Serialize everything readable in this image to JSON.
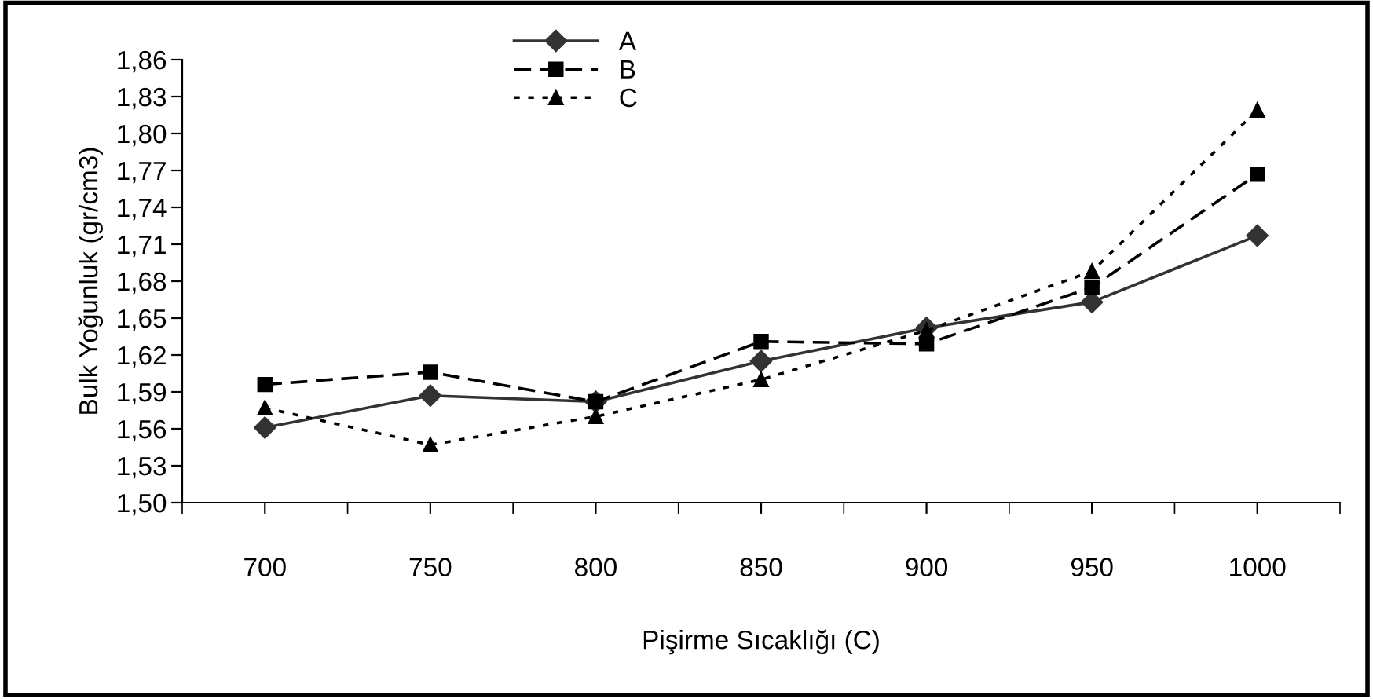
{
  "chart_data": {
    "type": "line",
    "xlabel": "Pişirme Sıcaklığı (C)",
    "ylabel": "Bulk Yoğunluk (gr/cm3)",
    "categories": [
      "700",
      "750",
      "800",
      "850",
      "900",
      "950",
      "1000"
    ],
    "series": [
      {
        "name": "A",
        "color": "#333333",
        "marker": "diamond",
        "line_style": "solid",
        "values": [
          1.561,
          1.587,
          1.582,
          1.615,
          1.642,
          1.663,
          1.717
        ]
      },
      {
        "name": "B",
        "color": "#000000",
        "marker": "square",
        "line_style": "dashed",
        "values": [
          1.596,
          1.606,
          1.582,
          1.631,
          1.629,
          1.675,
          1.767
        ]
      },
      {
        "name": "C",
        "color": "#000000",
        "marker": "triangle",
        "line_style": "dotted",
        "values": [
          1.577,
          1.547,
          1.57,
          1.6,
          1.64,
          1.688,
          1.819
        ]
      }
    ],
    "ylim": [
      1.5,
      1.86
    ],
    "yticks": [
      {
        "value": 1.5,
        "label": "1,50"
      },
      {
        "value": 1.53,
        "label": "1,53"
      },
      {
        "value": 1.56,
        "label": "1,56"
      },
      {
        "value": 1.59,
        "label": "1,59"
      },
      {
        "value": 1.62,
        "label": "1,62"
      },
      {
        "value": 1.65,
        "label": "1,65"
      },
      {
        "value": 1.68,
        "label": "1,68"
      },
      {
        "value": 1.71,
        "label": "1,71"
      },
      {
        "value": 1.74,
        "label": "1,74"
      },
      {
        "value": 1.77,
        "label": "1,77"
      },
      {
        "value": 1.8,
        "label": "1,80"
      },
      {
        "value": 1.83,
        "label": "1,83"
      },
      {
        "value": 1.86,
        "label": "1,86"
      }
    ],
    "grid": false,
    "legend": "top"
  }
}
